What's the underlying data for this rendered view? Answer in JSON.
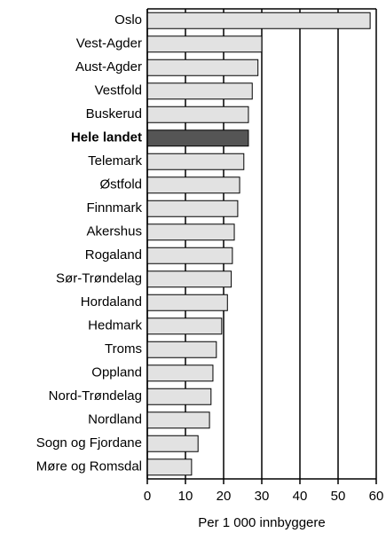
{
  "chart_data": {
    "type": "barh",
    "xlabel": "Per 1 000 innbyggere",
    "categories": [
      "Oslo",
      "Vest-Agder",
      "Aust-Agder",
      "Vestfold",
      "Buskerud",
      "Hele landet",
      "Telemark",
      "Østfold",
      "Finnmark",
      "Akershus",
      "Rogaland",
      "Sør-Trøndelag",
      "Hordaland",
      "Hedmark",
      "Troms",
      "Oppland",
      "Nord-Trøndelag",
      "Nordland",
      "Sogn og Fjordane",
      "Møre og Romsdal"
    ],
    "values": [
      58.4,
      30,
      29,
      27.5,
      26.5,
      26.5,
      25.3,
      24.2,
      23.7,
      22.8,
      22.3,
      22,
      21,
      19.5,
      18.1,
      17.2,
      16.7,
      16.3,
      13.3,
      11.6
    ],
    "color": "#e2e2e2",
    "highlight": "Hele landet",
    "highlight_color": "#555555",
    "xlim": [
      0,
      60
    ],
    "xticks": [
      0,
      10,
      20,
      30,
      40,
      50,
      60
    ],
    "grid": true
  }
}
